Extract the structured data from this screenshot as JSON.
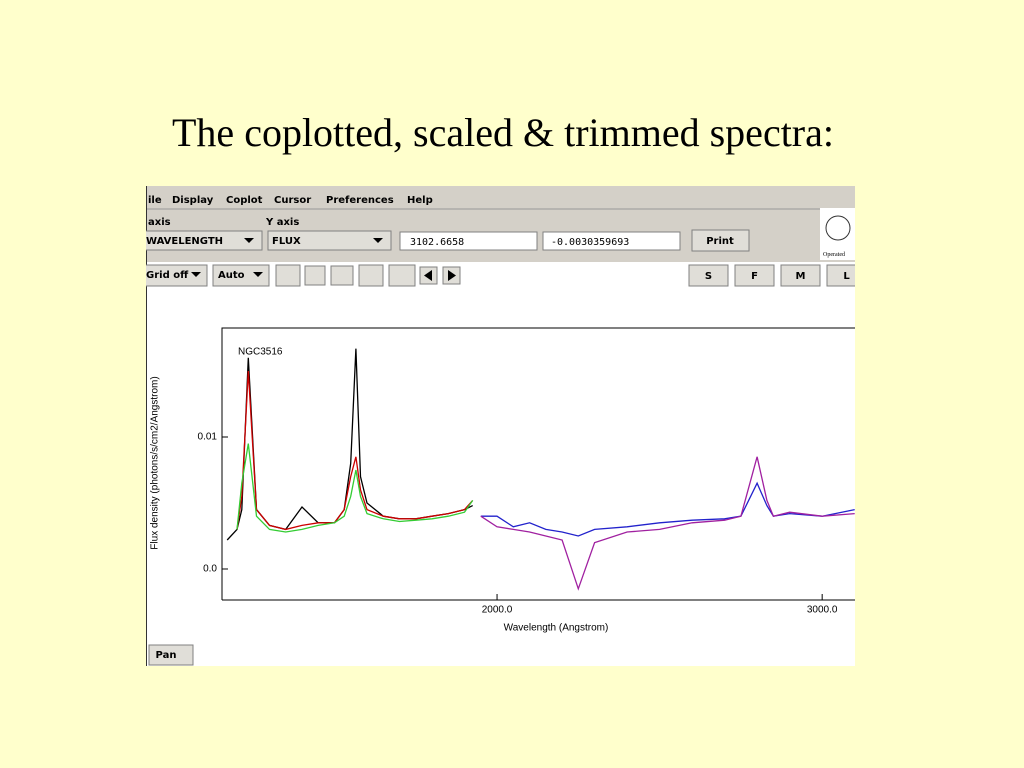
{
  "slide_title": "The coplotted, scaled & trimmed spectra:",
  "app": {
    "menu": [
      "ile",
      "Display",
      "Coplot",
      "Cursor",
      "Preferences",
      "Help"
    ],
    "x_axis_label": "axis",
    "y_axis_label": "Y axis",
    "x_axis_choice": "WAVELENGTH",
    "y_axis_choice": "FLUX",
    "cursor_x": "3102.6658",
    "cursor_y": "-0.0030359693",
    "print_button": "Print",
    "grid_button": "Grid off",
    "scale_button": "Auto",
    "zoom_buttons": [
      "S",
      "F",
      "M",
      "L"
    ],
    "logo_text": "Operated",
    "mode_button": "Pan"
  },
  "chart_data": {
    "type": "line",
    "xlabel": "Wavelength (Angstrom)",
    "ylabel": "Flux density (photons/s/cm2/Angstrom)",
    "annotation": "NGC3516",
    "xlim": [
      1154,
      3101
    ],
    "ylim": [
      -0.00235,
      0.01826
    ],
    "xticks": [
      {
        "value": 2000,
        "label": "2000.0"
      },
      {
        "value": 3000,
        "label": "3000.0"
      }
    ],
    "yticks": [
      {
        "value": 0,
        "label": "0.0"
      },
      0.01
    ],
    "x": [
      1170,
      1200,
      1215,
      1235,
      1260,
      1300,
      1350,
      1400,
      1450,
      1500,
      1530,
      1550,
      1566,
      1580,
      1600,
      1650,
      1700,
      1750,
      1800,
      1850,
      1900,
      1925,
      1950,
      2000,
      2050,
      2100,
      2150,
      2200,
      2250,
      2300,
      2400,
      2500,
      2600,
      2700,
      2750,
      2800,
      2830,
      2850,
      2900,
      3000,
      3100
    ],
    "series": [
      {
        "color": "#000000",
        "values": [
          0.0022,
          0.003,
          0.0045,
          0.016,
          0.0045,
          0.0033,
          0.003,
          0.0047,
          0.0035,
          0.0035,
          0.0045,
          0.008,
          0.0167,
          0.007,
          0.005,
          0.004,
          0.0038,
          0.0038,
          0.004,
          0.0042,
          0.0045,
          0.0048,
          null,
          null,
          null,
          null,
          null,
          null,
          null,
          null,
          null,
          null,
          null,
          null,
          null,
          null,
          null,
          null,
          null,
          null,
          null
        ]
      },
      {
        "color": "#cc0000",
        "values": [
          null,
          0.003,
          0.0055,
          0.015,
          0.0045,
          0.0033,
          0.003,
          0.0033,
          0.0035,
          0.0035,
          0.0045,
          0.007,
          0.0085,
          0.006,
          0.0045,
          0.004,
          0.0038,
          0.0038,
          0.004,
          0.0042,
          0.0045,
          0.0052,
          null,
          null,
          null,
          null,
          null,
          null,
          null,
          null,
          null,
          null,
          null,
          null,
          null,
          null,
          null,
          null,
          null,
          null,
          null
        ]
      },
      {
        "color": "#33cc33",
        "values": [
          null,
          0.003,
          0.0065,
          0.0095,
          0.004,
          0.003,
          0.0028,
          0.003,
          0.0033,
          0.0035,
          0.004,
          0.0055,
          0.0075,
          0.0055,
          0.0042,
          0.0038,
          0.0036,
          0.0037,
          0.0038,
          0.004,
          0.0043,
          0.0052,
          null,
          null,
          null,
          null,
          null,
          null,
          null,
          null,
          null,
          null,
          null,
          null,
          null,
          null,
          null,
          null,
          null,
          null,
          null
        ]
      },
      {
        "color": "#2222cc",
        "values": [
          null,
          null,
          null,
          null,
          null,
          null,
          null,
          null,
          null,
          null,
          null,
          null,
          null,
          null,
          null,
          null,
          null,
          null,
          null,
          null,
          null,
          null,
          0.004,
          0.004,
          0.0032,
          0.0035,
          0.003,
          0.0028,
          0.0025,
          0.003,
          0.0032,
          0.0035,
          0.0037,
          0.0038,
          0.004,
          0.0065,
          0.0048,
          0.004,
          0.0042,
          0.004,
          0.0045
        ]
      },
      {
        "color": "#a020a0",
        "values": [
          null,
          null,
          null,
          null,
          null,
          null,
          null,
          null,
          null,
          null,
          null,
          null,
          null,
          null,
          null,
          null,
          null,
          null,
          null,
          null,
          null,
          null,
          0.004,
          0.0032,
          0.003,
          0.0028,
          0.0025,
          0.0022,
          -0.0015,
          0.002,
          0.0028,
          0.003,
          0.0035,
          0.0037,
          0.004,
          0.0085,
          0.0052,
          0.004,
          0.0043,
          0.004,
          0.0042
        ]
      }
    ]
  }
}
